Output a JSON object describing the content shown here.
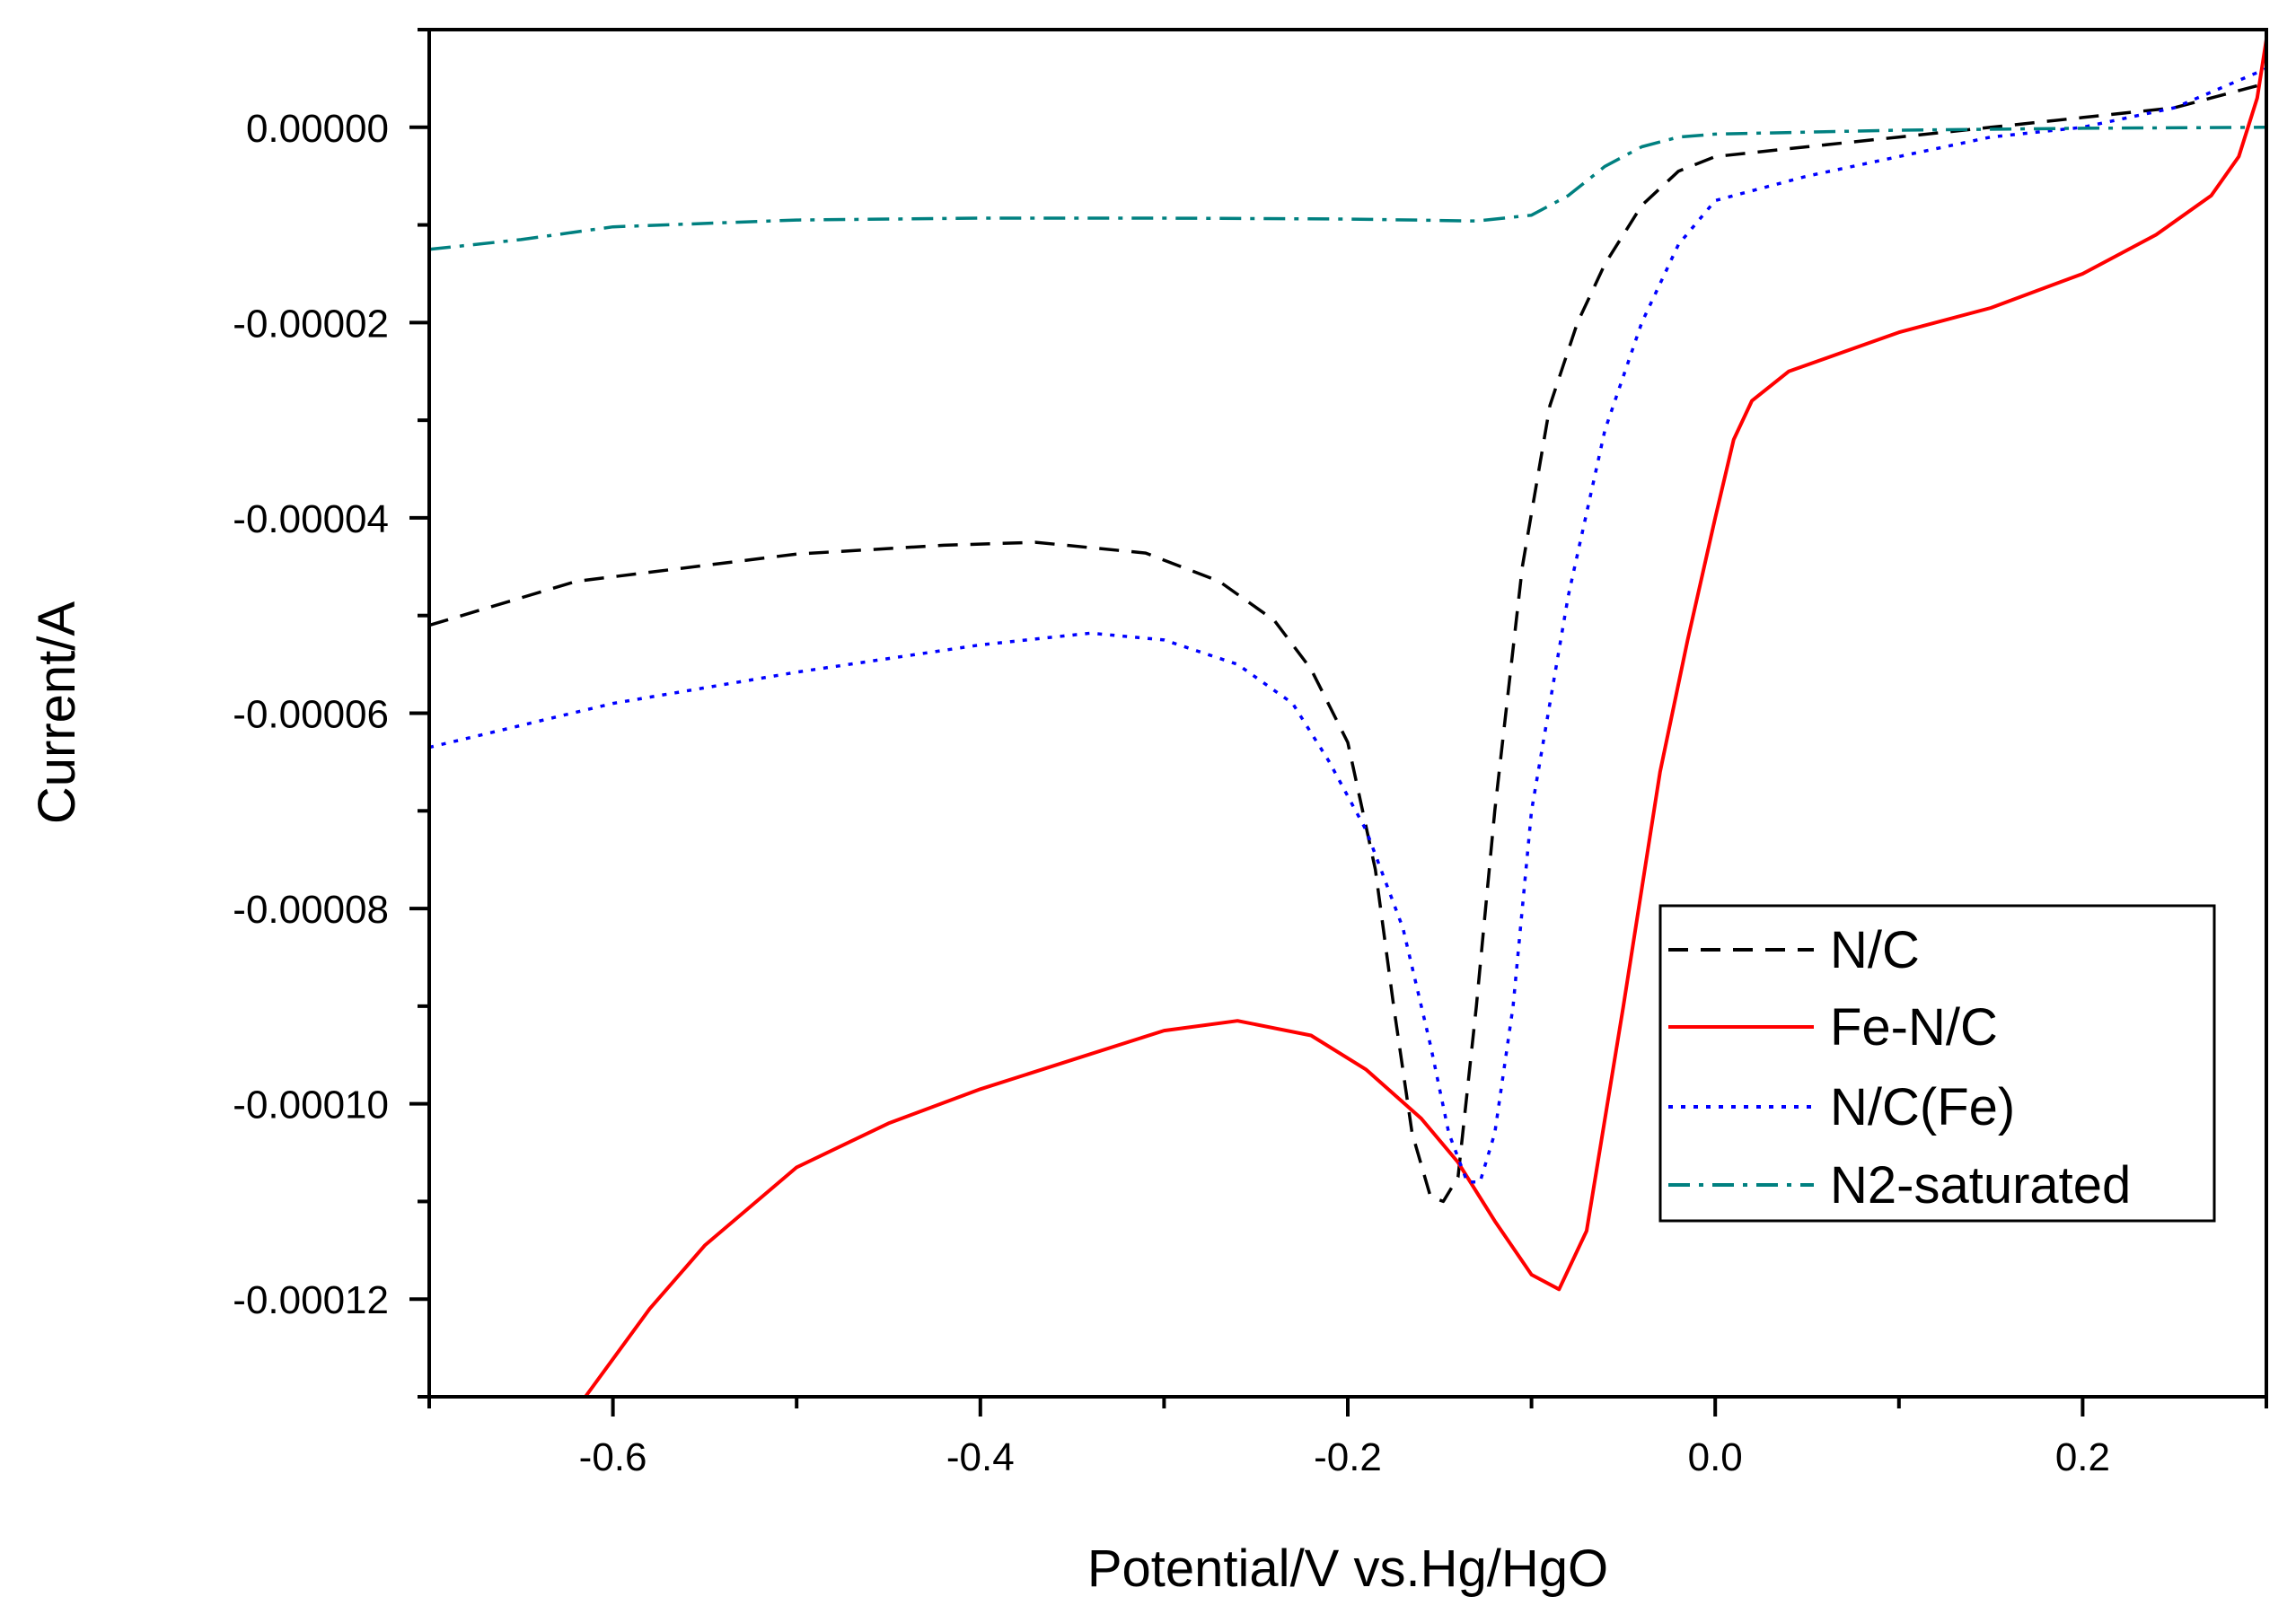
{
  "chart_data": {
    "type": "line",
    "title": "",
    "xlabel": "Potential/V vs.Hg/HgO",
    "ylabel": "Current/A",
    "xlim": [
      -0.7,
      0.3
    ],
    "ylim": [
      -0.00013,
      1e-05
    ],
    "x_ticks": [
      -0.6,
      -0.4,
      -0.2,
      0.0,
      0.2
    ],
    "x_tick_labels": [
      "-0.6",
      "-0.4",
      "-0.2",
      "0.0",
      "0.2"
    ],
    "x_minor_ticks": [
      -0.7,
      -0.5,
      -0.3,
      -0.1,
      0.1,
      0.3
    ],
    "y_ticks": [
      0,
      -2e-05,
      -4e-05,
      -6e-05,
      -8e-05,
      -0.0001,
      -0.00012
    ],
    "y_tick_labels": [
      "0.00000",
      "-0.00002",
      "-0.00004",
      "-0.00006",
      "-0.00008",
      "-0.00010",
      "-0.00012"
    ],
    "y_minor_ticks": [
      1e-05,
      -1e-05,
      -3e-05,
      -5e-05,
      -7e-05,
      -9e-05,
      -0.00011,
      -0.00013
    ],
    "grid": false,
    "legend_position": "lower-right",
    "series": [
      {
        "name": "N/C",
        "color": "#000000",
        "style": "dashed",
        "x": [
          -0.7,
          -0.62,
          -0.5,
          -0.42,
          -0.37,
          -0.31,
          -0.27,
          -0.24,
          -0.22,
          -0.2,
          -0.185,
          -0.175,
          -0.165,
          -0.155,
          -0.148,
          -0.14,
          -0.13,
          -0.12,
          -0.105,
          -0.09,
          -0.075,
          -0.06,
          -0.04,
          -0.02,
          0.0,
          0.05,
          0.1,
          0.15,
          0.2,
          0.25,
          0.3
        ],
        "y": [
          -5.1e-05,
          -4.65e-05,
          -4.37e-05,
          -4.28e-05,
          -4.25e-05,
          -4.36e-05,
          -4.65e-05,
          -5.05e-05,
          -5.55e-05,
          -6.3e-05,
          -7.6e-05,
          -9e-05,
          -0.000103,
          -0.0001095,
          -0.00011,
          -0.0001075,
          -9e-05,
          -7e-05,
          -4.5e-05,
          -2.85e-05,
          -2e-05,
          -1.4e-05,
          -8e-06,
          -4.5e-06,
          -3e-06,
          -2e-06,
          -1e-06,
          0.0,
          1e-06,
          2e-06,
          4.5e-06
        ]
      },
      {
        "name": "Fe-N/C",
        "color": "#ff0000",
        "style": "solid",
        "x": [
          -0.615,
          -0.58,
          -0.55,
          -0.5,
          -0.45,
          -0.4,
          -0.35,
          -0.3,
          -0.26,
          -0.22,
          -0.19,
          -0.16,
          -0.14,
          -0.12,
          -0.1,
          -0.085,
          -0.07,
          -0.05,
          -0.03,
          -0.015,
          0.0,
          0.01,
          0.02,
          0.04,
          0.07,
          0.1,
          0.15,
          0.2,
          0.24,
          0.27,
          0.285,
          0.295,
          0.3
        ],
        "y": [
          -0.00013,
          -0.000121,
          -0.0001145,
          -0.0001065,
          -0.000102,
          -9.85e-05,
          -9.55e-05,
          -9.25e-05,
          -9.15e-05,
          -9.3e-05,
          -9.65e-05,
          -0.0001015,
          -0.000106,
          -0.000112,
          -0.0001175,
          -0.000119,
          -0.000113,
          -9e-05,
          -6.6e-05,
          -5.25e-05,
          -4e-05,
          -3.2e-05,
          -2.8e-05,
          -2.5e-05,
          -2.3e-05,
          -2.1e-05,
          -1.85e-05,
          -1.5e-05,
          -1.1e-05,
          -7e-06,
          -3e-06,
          3e-06,
          9e-06
        ]
      },
      {
        "name": "N/C(Fe)",
        "color": "#0000ff",
        "style": "dotted",
        "x": [
          -0.7,
          -0.6,
          -0.5,
          -0.4,
          -0.34,
          -0.3,
          -0.26,
          -0.23,
          -0.21,
          -0.19,
          -0.17,
          -0.155,
          -0.145,
          -0.135,
          -0.128,
          -0.12,
          -0.11,
          -0.1,
          -0.08,
          -0.06,
          -0.04,
          -0.02,
          0.0,
          0.05,
          0.1,
          0.15,
          0.2,
          0.25,
          0.3
        ],
        "y": [
          -6.35e-05,
          -5.9e-05,
          -5.58e-05,
          -5.3e-05,
          -5.18e-05,
          -5.25e-05,
          -5.5e-05,
          -5.9e-05,
          -6.5e-05,
          -7.2e-05,
          -8.2e-05,
          -9.4e-05,
          -0.000103,
          -0.000108,
          -0.000108,
          -0.000103,
          -9e-05,
          -7e-05,
          -4.8e-05,
          -3.1e-05,
          -2e-05,
          -1.2e-05,
          -7.5e-06,
          -5e-06,
          -3e-06,
          -1e-06,
          0.0,
          2e-06,
          6e-06
        ]
      },
      {
        "name": "N2-saturated",
        "color": "#008080",
        "style": "dashdot",
        "x": [
          -0.7,
          -0.65,
          -0.6,
          -0.5,
          -0.4,
          -0.3,
          -0.2,
          -0.13,
          -0.1,
          -0.08,
          -0.06,
          -0.04,
          -0.02,
          0.0,
          0.05,
          0.1,
          0.2,
          0.3
        ],
        "y": [
          -1.25e-05,
          -1.15e-05,
          -1.02e-05,
          -9.5e-06,
          -9.3e-06,
          -9.3e-06,
          -9.4e-06,
          -9.6e-06,
          -9e-06,
          -7e-06,
          -4e-06,
          -2e-06,
          -1e-06,
          -7e-07,
          -5e-07,
          -3e-07,
          -1e-07,
          0.0
        ]
      }
    ]
  }
}
